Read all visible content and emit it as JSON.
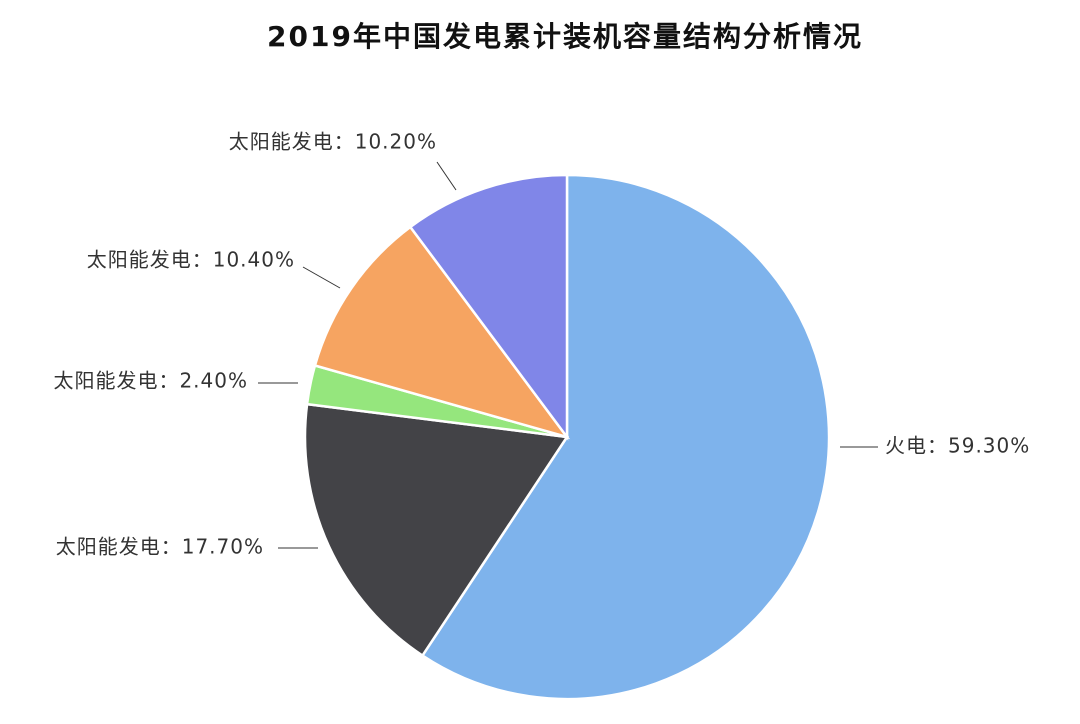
{
  "chart_data": {
    "type": "pie",
    "title": "2019年中国发电累计装机容量结构分析情况",
    "value_labels": [
      "火电：59.30%",
      "太阳能发电：17.70%",
      "太阳能发电：2.40%",
      "太阳能发电：10.40%",
      "太阳能发电：10.20%"
    ],
    "values": [
      59.3,
      17.7,
      2.4,
      10.4,
      10.2
    ],
    "colors": [
      "#7eb3ec",
      "#434347",
      "#95e67d",
      "#f6a461",
      "#8086e8"
    ]
  }
}
